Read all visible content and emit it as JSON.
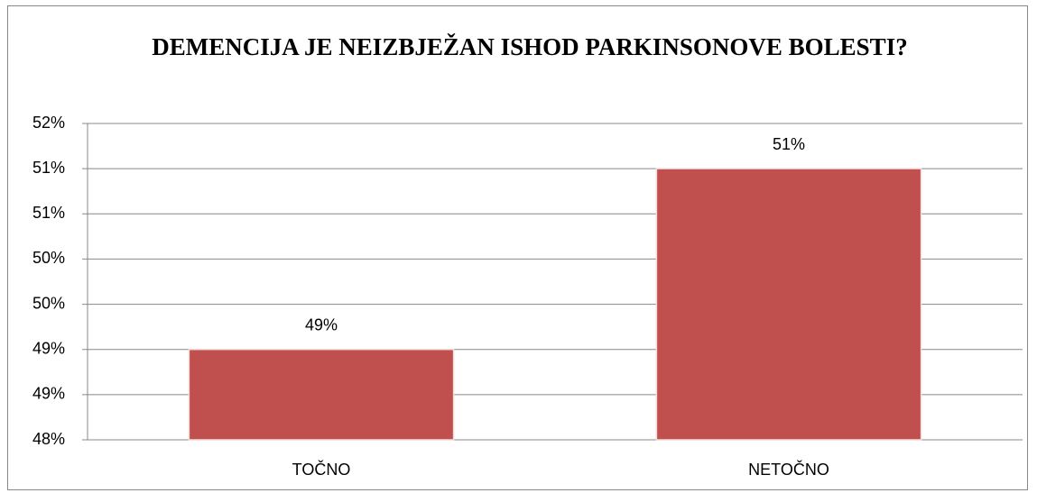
{
  "chart_data": {
    "type": "bar",
    "title": "DEMENCIJA JE NEIZBJEŽAN ISHOD PARKINSONOVE BOLESTI?",
    "categories": [
      "TOČNO",
      "NETOČNO"
    ],
    "values": [
      49.143,
      51.429
    ],
    "value_labels": [
      "49%",
      "51%"
    ],
    "color": "#c0504d",
    "ylim": [
      48,
      52
    ],
    "yticks": [
      {
        "value": 48,
        "label": "48%"
      },
      {
        "value": 48.571,
        "label": "49%"
      },
      {
        "value": 49.143,
        "label": "49%"
      },
      {
        "value": 49.714,
        "label": "50%"
      },
      {
        "value": 50.286,
        "label": "50%"
      },
      {
        "value": 50.857,
        "label": "51%"
      },
      {
        "value": 51.429,
        "label": "51%"
      },
      {
        "value": 52,
        "label": "52%"
      }
    ],
    "grid": true
  }
}
